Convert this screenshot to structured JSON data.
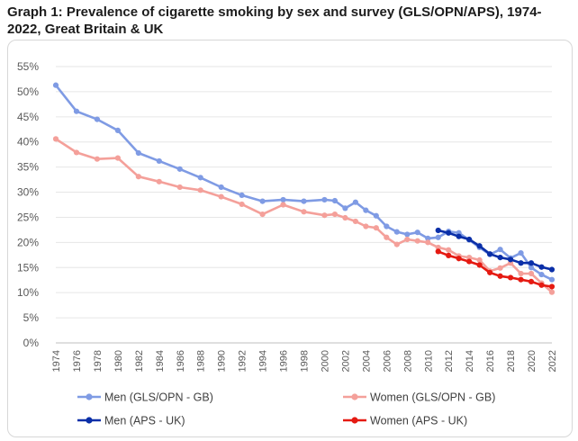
{
  "title": "Graph 1: Prevalence of cigarette smoking by sex and survey (GLS/OPN/APS), 1974-2022, Great Britain & UK",
  "chart_data": {
    "type": "line",
    "title": "Graph 1: Prevalence of cigarette smoking by sex and survey (GLS/OPN/APS), 1974-2022, Great Britain & UK",
    "xlabel": "",
    "ylabel": "",
    "xlim": [
      1974,
      2022
    ],
    "ylim": [
      0,
      55
    ],
    "y_ticks": [
      "0%",
      "5%",
      "10%",
      "15%",
      "20%",
      "25%",
      "30%",
      "35%",
      "40%",
      "45%",
      "50%",
      "55%"
    ],
    "x_ticks": [
      "1974",
      "1976",
      "1978",
      "1980",
      "1982",
      "1984",
      "1986",
      "1988",
      "1990",
      "1992",
      "1994",
      "1996",
      "1998",
      "2000",
      "2002",
      "2004",
      "2006",
      "2008",
      "2010",
      "2012",
      "2014",
      "2016",
      "2018",
      "2020",
      "2022"
    ],
    "grid": true,
    "legend_position": "bottom",
    "series": [
      {
        "name": "Men (GLS/OPN - GB)",
        "color": "#7f9be4",
        "points": [
          [
            1974,
            51.3
          ],
          [
            1976,
            46.1
          ],
          [
            1978,
            44.5
          ],
          [
            1980,
            42.3
          ],
          [
            1982,
            37.8
          ],
          [
            1984,
            36.2
          ],
          [
            1986,
            34.6
          ],
          [
            1988,
            32.9
          ],
          [
            1990,
            31.0
          ],
          [
            1992,
            29.4
          ],
          [
            1994,
            28.2
          ],
          [
            1996,
            28.5
          ],
          [
            1998,
            28.2
          ],
          [
            2000,
            28.5
          ],
          [
            2001,
            28.3
          ],
          [
            2002,
            26.8
          ],
          [
            2003,
            28.0
          ],
          [
            2004,
            26.4
          ],
          [
            2005,
            25.3
          ],
          [
            2006,
            23.2
          ],
          [
            2007,
            22.1
          ],
          [
            2008,
            21.6
          ],
          [
            2009,
            22.0
          ],
          [
            2010,
            20.8
          ],
          [
            2011,
            21.0
          ],
          [
            2012,
            22.2
          ],
          [
            2013,
            21.9
          ],
          [
            2014,
            20.5
          ],
          [
            2015,
            19.0
          ],
          [
            2016,
            17.6
          ],
          [
            2017,
            18.6
          ],
          [
            2018,
            16.9
          ],
          [
            2019,
            17.9
          ],
          [
            2020,
            15.0
          ],
          [
            2021,
            13.6
          ],
          [
            2022,
            12.6
          ]
        ]
      },
      {
        "name": "Women (GLS/OPN - GB)",
        "color": "#f4a09a",
        "points": [
          [
            1974,
            40.6
          ],
          [
            1976,
            37.9
          ],
          [
            1978,
            36.6
          ],
          [
            1980,
            36.8
          ],
          [
            1982,
            33.1
          ],
          [
            1984,
            32.1
          ],
          [
            1986,
            31.0
          ],
          [
            1988,
            30.4
          ],
          [
            1990,
            29.1
          ],
          [
            1992,
            27.6
          ],
          [
            1994,
            25.6
          ],
          [
            1996,
            27.5
          ],
          [
            1998,
            26.1
          ],
          [
            2000,
            25.4
          ],
          [
            2001,
            25.6
          ],
          [
            2002,
            24.9
          ],
          [
            2003,
            24.2
          ],
          [
            2004,
            23.2
          ],
          [
            2005,
            22.9
          ],
          [
            2006,
            21.0
          ],
          [
            2007,
            19.6
          ],
          [
            2008,
            20.6
          ],
          [
            2009,
            20.3
          ],
          [
            2010,
            20.0
          ],
          [
            2011,
            19.0
          ],
          [
            2012,
            18.5
          ],
          [
            2013,
            17.3
          ],
          [
            2014,
            17.0
          ],
          [
            2015,
            16.5
          ],
          [
            2016,
            14.3
          ],
          [
            2017,
            14.9
          ],
          [
            2018,
            15.9
          ],
          [
            2019,
            13.8
          ],
          [
            2020,
            13.8
          ],
          [
            2021,
            11.9
          ],
          [
            2022,
            10.1
          ]
        ]
      },
      {
        "name": "Men (APS - UK)",
        "color": "#0a2fa8",
        "points": [
          [
            2011,
            22.4
          ],
          [
            2012,
            21.9
          ],
          [
            2013,
            21.2
          ],
          [
            2014,
            20.6
          ],
          [
            2015,
            19.3
          ],
          [
            2016,
            17.7
          ],
          [
            2017,
            17.0
          ],
          [
            2018,
            16.6
          ],
          [
            2019,
            15.9
          ],
          [
            2020,
            15.9
          ],
          [
            2021,
            15.1
          ],
          [
            2022,
            14.6
          ]
        ]
      },
      {
        "name": "Women (APS - UK)",
        "color": "#e51a12",
        "points": [
          [
            2011,
            18.2
          ],
          [
            2012,
            17.4
          ],
          [
            2013,
            16.8
          ],
          [
            2014,
            16.2
          ],
          [
            2015,
            15.5
          ],
          [
            2016,
            14.0
          ],
          [
            2017,
            13.3
          ],
          [
            2018,
            13.0
          ],
          [
            2019,
            12.6
          ],
          [
            2020,
            12.2
          ],
          [
            2021,
            11.5
          ],
          [
            2022,
            11.2
          ]
        ]
      }
    ]
  }
}
